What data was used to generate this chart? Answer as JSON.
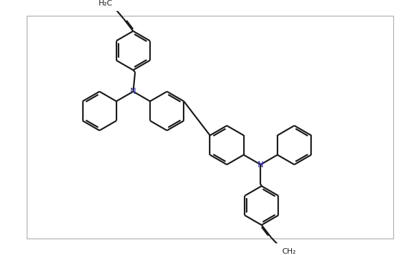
{
  "bg_color": "#ffffff",
  "bond_color": "#1a1a1a",
  "N_color": "#3333bb",
  "line_width": 1.6,
  "fig_width": 6.13,
  "fig_height": 3.72,
  "dpi": 100,
  "xlim": [
    0,
    10.2
  ],
  "ylim": [
    0,
    6.2
  ]
}
